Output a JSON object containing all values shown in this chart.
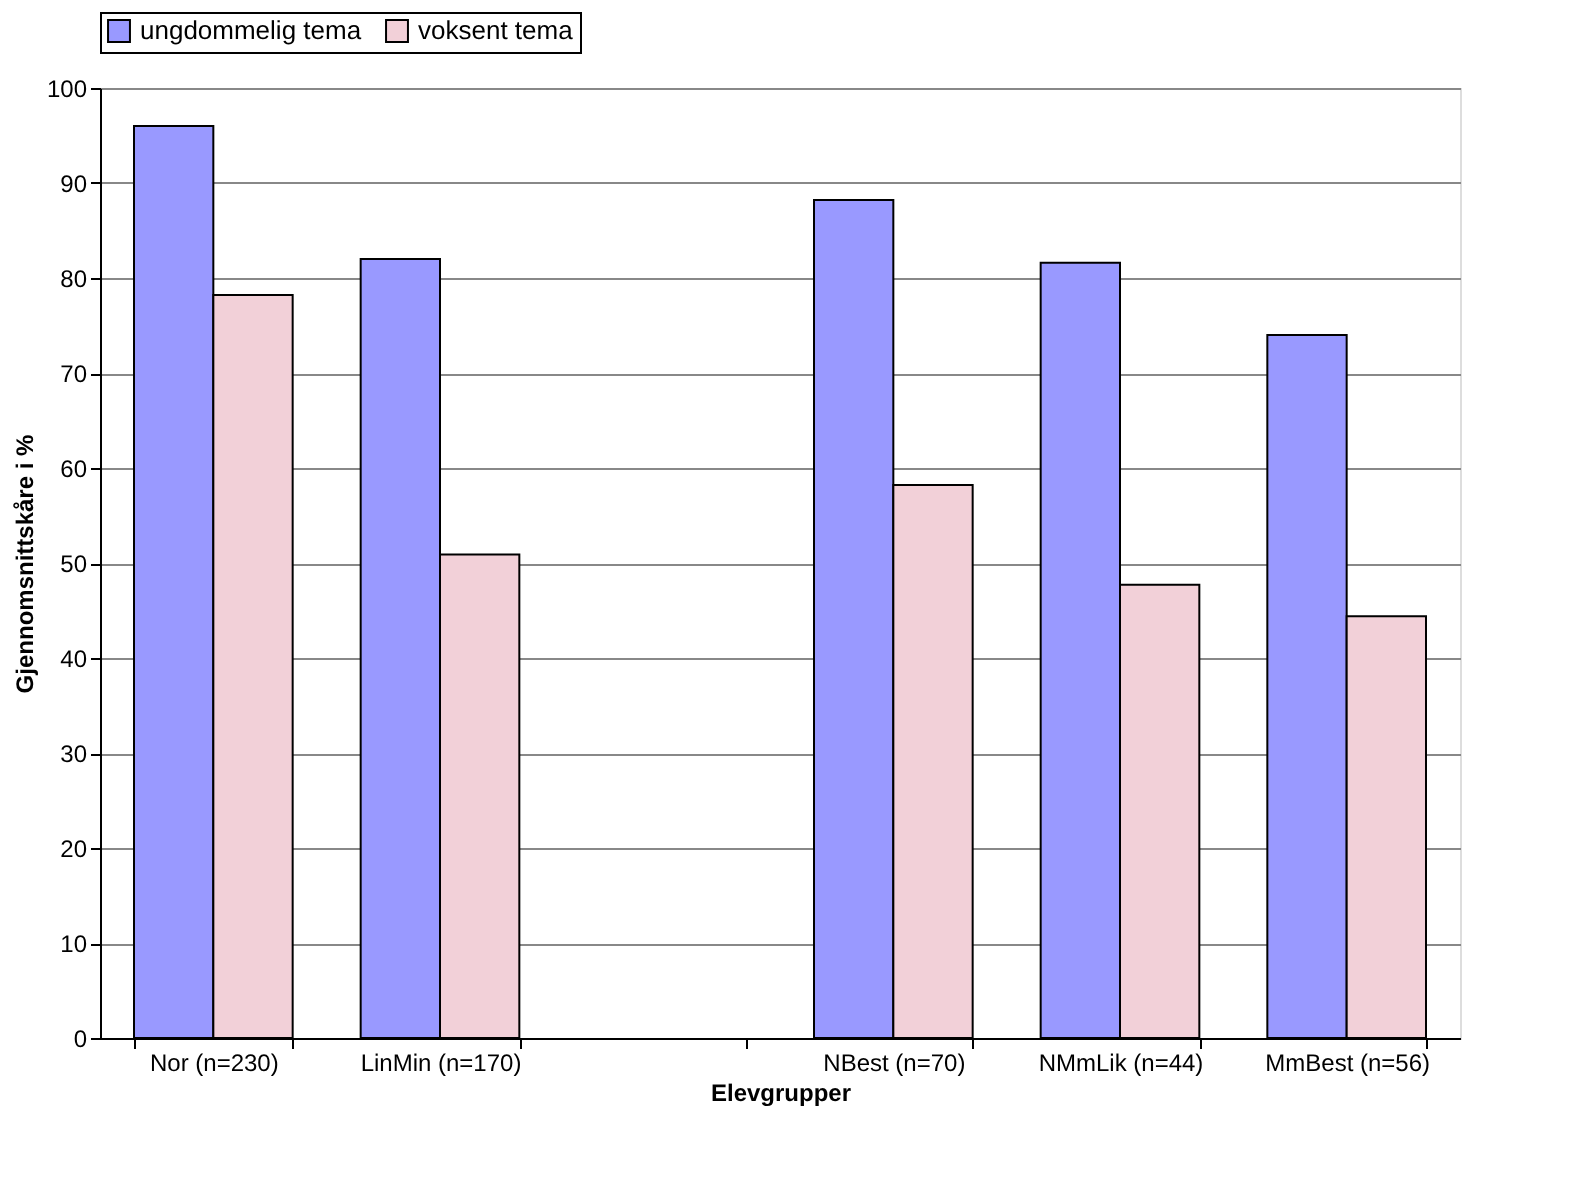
{
  "chart_data": {
    "type": "bar",
    "xlabel": "Elevgrupper",
    "ylabel": "Gjennomsnittskåre i %",
    "categories": [
      "Nor (n=230)",
      "LinMin (n=170)",
      null,
      "NBest (n=70)",
      "NMmLik (n=44)",
      "MmBest (n=56)"
    ],
    "series": [
      {
        "name": "ungdommelig tema",
        "color": "#9999ff",
        "values": [
          96.0,
          82.0,
          null,
          88.2,
          81.6,
          74.0
        ]
      },
      {
        "name": "voksent tema",
        "color": "#f2d0d8",
        "values": [
          78.2,
          50.9,
          null,
          58.2,
          47.7,
          44.4
        ]
      }
    ],
    "ylim": [
      0,
      100
    ],
    "yticks": [
      0,
      10,
      20,
      30,
      40,
      50,
      60,
      70,
      80,
      90,
      100
    ],
    "grid": "y",
    "legend": "top"
  }
}
